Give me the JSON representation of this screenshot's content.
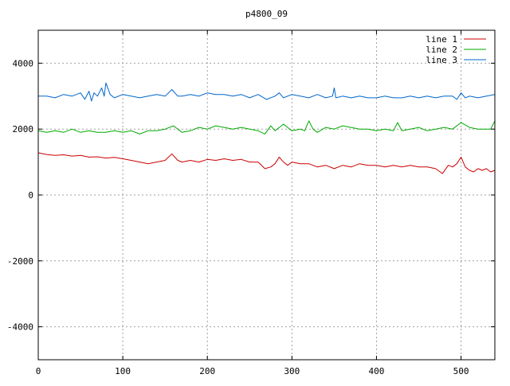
{
  "chart_data": {
    "type": "line",
    "title": "p4800_09",
    "xlabel": "",
    "ylabel": "",
    "xlim": [
      0,
      540
    ],
    "ylim": [
      -5000,
      5000
    ],
    "xticks": [
      0,
      100,
      200,
      300,
      400,
      500
    ],
    "yticks": [
      -4000,
      -2000,
      0,
      2000,
      4000
    ],
    "grid": true,
    "legend_position": "top-right",
    "series": [
      {
        "name": "line 1",
        "color": "#cc0000",
        "x": [
          0,
          10,
          20,
          30,
          40,
          50,
          60,
          70,
          80,
          90,
          100,
          110,
          120,
          130,
          140,
          150,
          158,
          165,
          170,
          180,
          190,
          200,
          210,
          220,
          230,
          240,
          250,
          260,
          268,
          275,
          280,
          285,
          290,
          295,
          300,
          310,
          320,
          330,
          340,
          350,
          360,
          370,
          380,
          390,
          400,
          410,
          420,
          430,
          440,
          450,
          460,
          470,
          478,
          485,
          490,
          495,
          500,
          505,
          510,
          515,
          520,
          525,
          530,
          535,
          540
        ],
        "y": [
          1280,
          1230,
          1200,
          1220,
          1180,
          1200,
          1150,
          1160,
          1120,
          1140,
          1100,
          1050,
          1000,
          950,
          1000,
          1050,
          1250,
          1050,
          1000,
          1050,
          1000,
          1080,
          1050,
          1100,
          1050,
          1080,
          1000,
          1000,
          800,
          850,
          950,
          1150,
          1000,
          900,
          1000,
          950,
          950,
          850,
          900,
          800,
          900,
          850,
          950,
          900,
          900,
          850,
          900,
          850,
          900,
          850,
          850,
          800,
          650,
          900,
          850,
          950,
          1150,
          850,
          750,
          700,
          800,
          750,
          800,
          700,
          750
        ]
      },
      {
        "name": "line 2",
        "color": "#00aa00",
        "x": [
          0,
          10,
          20,
          30,
          40,
          50,
          60,
          70,
          80,
          90,
          100,
          110,
          120,
          130,
          140,
          150,
          160,
          170,
          180,
          190,
          200,
          210,
          220,
          230,
          240,
          250,
          260,
          268,
          275,
          280,
          290,
          300,
          310,
          315,
          320,
          325,
          330,
          340,
          350,
          360,
          370,
          380,
          390,
          400,
          410,
          420,
          425,
          430,
          440,
          450,
          460,
          470,
          480,
          490,
          500,
          510,
          520,
          530,
          535,
          540
        ],
        "y": [
          1950,
          1900,
          1950,
          1900,
          2000,
          1900,
          1950,
          1900,
          1900,
          1950,
          1900,
          1950,
          1850,
          1950,
          1950,
          2000,
          2100,
          1900,
          1950,
          2050,
          2000,
          2100,
          2050,
          2000,
          2050,
          2000,
          1950,
          1850,
          2100,
          1950,
          2150,
          1950,
          2000,
          1950,
          2250,
          2000,
          1900,
          2050,
          2000,
          2100,
          2050,
          2000,
          2000,
          1950,
          2000,
          1950,
          2200,
          1950,
          2000,
          2050,
          1950,
          2000,
          2050,
          2000,
          2200,
          2050,
          2000,
          2000,
          2000,
          2250
        ]
      },
      {
        "name": "line 3",
        "color": "#0066cc",
        "x": [
          0,
          10,
          20,
          30,
          40,
          50,
          55,
          60,
          63,
          66,
          70,
          75,
          78,
          80,
          85,
          90,
          100,
          110,
          120,
          130,
          140,
          150,
          158,
          165,
          170,
          180,
          190,
          200,
          210,
          220,
          230,
          240,
          250,
          260,
          270,
          280,
          285,
          290,
          300,
          310,
          320,
          330,
          340,
          348,
          350,
          352,
          360,
          370,
          380,
          390,
          400,
          410,
          420,
          430,
          440,
          450,
          460,
          470,
          480,
          490,
          495,
          500,
          505,
          510,
          520,
          530,
          540
        ],
        "y": [
          3000,
          3000,
          2950,
          3050,
          3000,
          3100,
          2900,
          3150,
          2850,
          3100,
          3000,
          3250,
          3000,
          3400,
          3050,
          2950,
          3050,
          3000,
          2950,
          3000,
          3050,
          3000,
          3200,
          3000,
          3000,
          3050,
          3000,
          3100,
          3050,
          3050,
          3000,
          3050,
          2950,
          3050,
          2900,
          3000,
          3100,
          2950,
          3050,
          3000,
          2950,
          3050,
          2950,
          3000,
          3250,
          2950,
          3000,
          2950,
          3000,
          2950,
          2950,
          3000,
          2950,
          2950,
          3000,
          2950,
          3000,
          2950,
          3000,
          3000,
          2900,
          3100,
          2950,
          3000,
          2950,
          3000,
          3050
        ]
      }
    ]
  }
}
